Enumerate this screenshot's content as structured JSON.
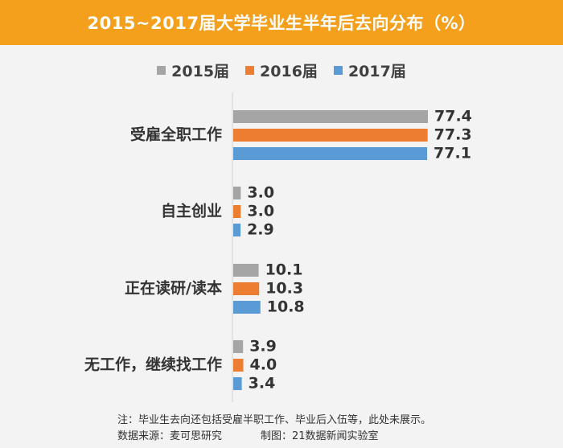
{
  "chart_data": {
    "type": "bar",
    "orientation": "horizontal",
    "title": "2015~2017届大学毕业生半年后去向分布（%）",
    "categories": [
      "受雇全职工作",
      "自主创业",
      "正在读研/读本",
      "无工作，继续找工作"
    ],
    "series": [
      {
        "name": "2015届",
        "color": "#a5a5a5",
        "values": [
          77.4,
          3.0,
          10.1,
          3.9
        ]
      },
      {
        "name": "2016届",
        "color": "#ed7d31",
        "values": [
          77.3,
          3.0,
          10.3,
          4.0
        ]
      },
      {
        "name": "2017届",
        "color": "#5b9bd5",
        "values": [
          77.1,
          2.9,
          10.8,
          3.4
        ]
      }
    ],
    "value_labels": [
      [
        "77.4",
        "3.0",
        "10.1",
        "3.9"
      ],
      [
        "77.3",
        "3.0",
        "10.3",
        "4.0"
      ],
      [
        "77.1",
        "2.9",
        "10.8",
        "3.4"
      ]
    ],
    "xlim": [
      0,
      80
    ],
    "grid": false,
    "legend_position": "top"
  },
  "footer": {
    "note": "注：毕业生去向还包括受雇半职工作、毕业后入伍等，此处未展示。",
    "source": "数据来源：麦可思研究",
    "credit": "制图：21数据新闻实验室"
  },
  "colors": {
    "title_bar": "#f5a01d",
    "background": "#f3f3f3"
  }
}
